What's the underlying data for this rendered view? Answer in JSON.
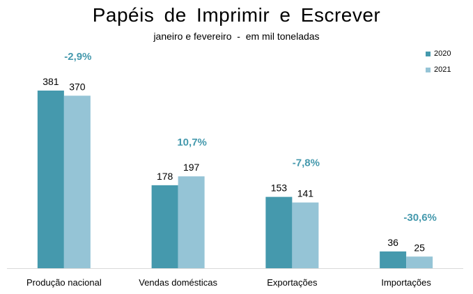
{
  "chart_data": {
    "type": "bar",
    "title": "Papéis de Imprimir e Escrever",
    "subtitle": "janeiro e fevereiro  -  em mil toneladas",
    "categories": [
      "Produção nacional",
      "Vendas domésticas",
      "Exportações",
      "Importações"
    ],
    "series": [
      {
        "name": "2020",
        "values": [
          381,
          178,
          153,
          36
        ],
        "color": "#4599ad"
      },
      {
        "name": "2021",
        "values": [
          370,
          197,
          141,
          25
        ],
        "color": "#95c4d6"
      }
    ],
    "changes": [
      "-2,9%",
      "10,7%",
      "-7,8%",
      "-30,6%"
    ],
    "change_color": "#4599ad",
    "ylim": [
      0,
      400
    ],
    "grid": false,
    "legend_position": "top-right"
  }
}
